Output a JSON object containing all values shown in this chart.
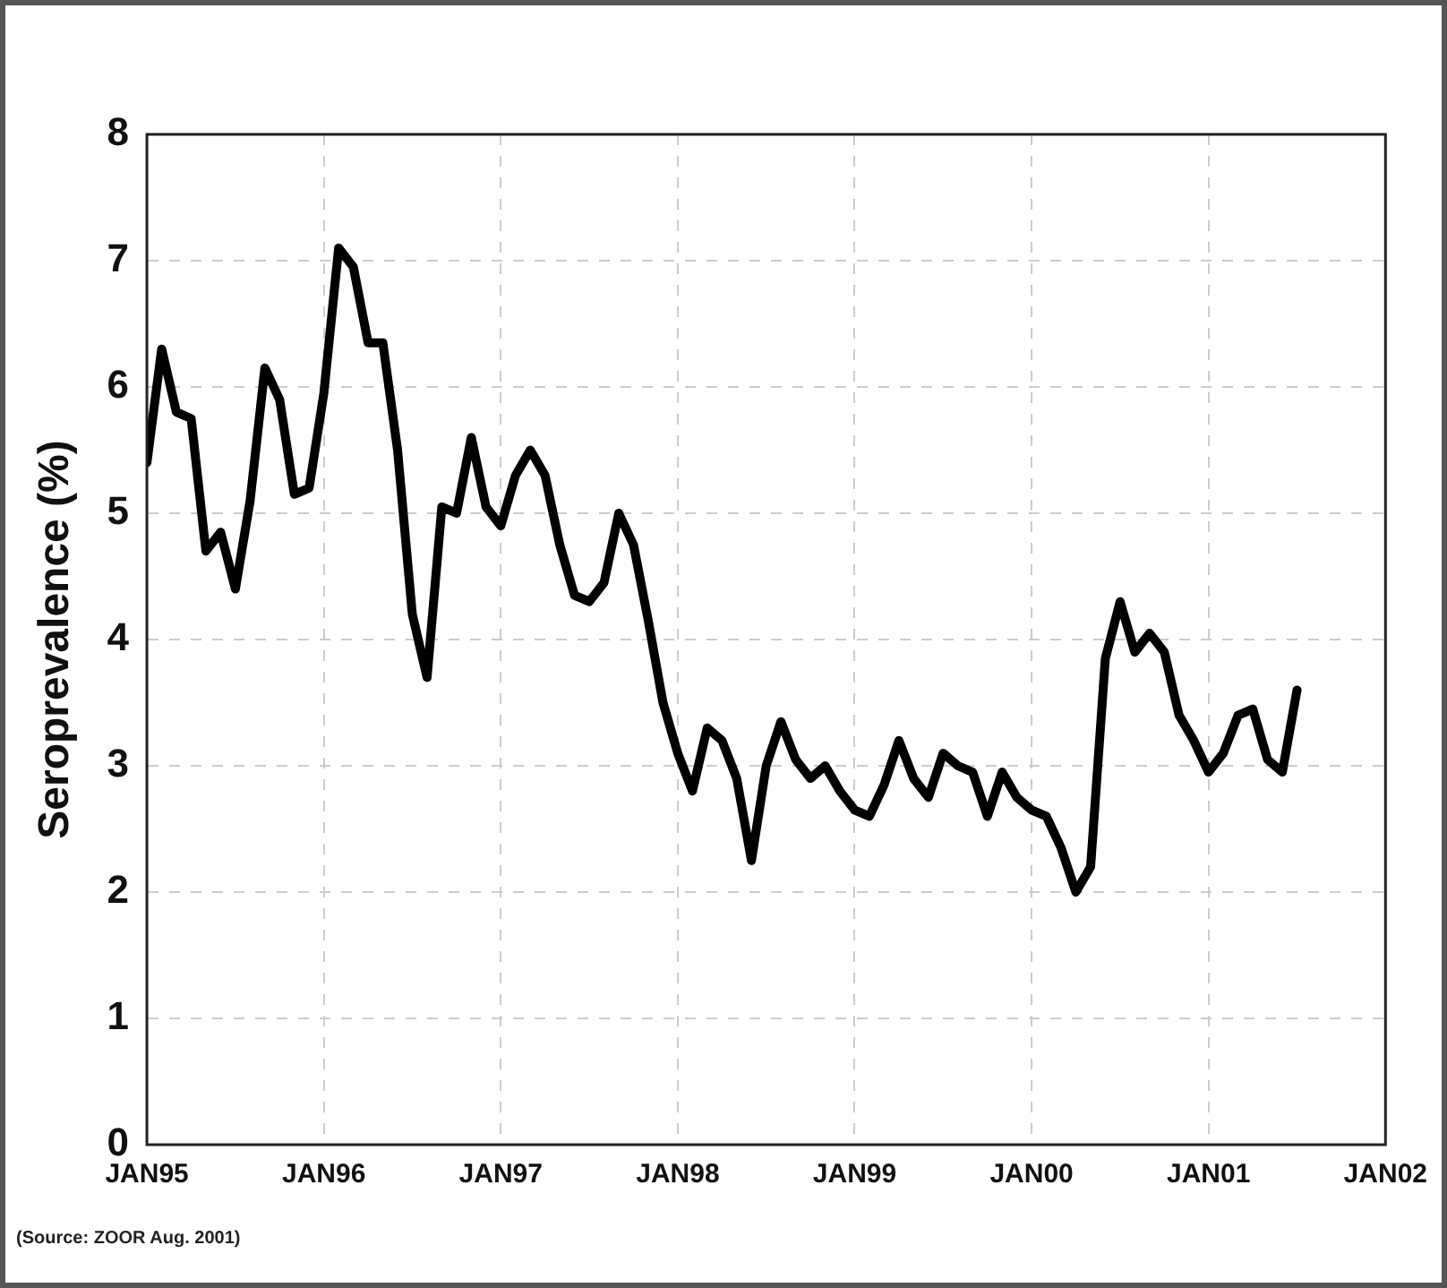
{
  "chart_data": {
    "type": "line",
    "ylabel": "Seroprevalence (%)",
    "x": [
      "1995-01",
      "1995-02",
      "1995-03",
      "1995-04",
      "1995-05",
      "1995-06",
      "1995-07",
      "1995-08",
      "1995-09",
      "1995-10",
      "1995-11",
      "1995-12",
      "1996-01",
      "1996-02",
      "1996-03",
      "1996-04",
      "1996-05",
      "1996-06",
      "1996-07",
      "1996-08",
      "1996-09",
      "1996-10",
      "1996-11",
      "1996-12",
      "1997-01",
      "1997-02",
      "1997-03",
      "1997-04",
      "1997-05",
      "1997-06",
      "1997-07",
      "1997-08",
      "1997-09",
      "1997-10",
      "1997-11",
      "1997-12",
      "1998-01",
      "1998-02",
      "1998-03",
      "1998-04",
      "1998-05",
      "1998-06",
      "1998-07",
      "1998-08",
      "1998-09",
      "1998-10",
      "1998-11",
      "1998-12",
      "1999-01",
      "1999-02",
      "1999-03",
      "1999-04",
      "1999-05",
      "1999-06",
      "1999-07",
      "1999-08",
      "1999-09",
      "1999-10",
      "1999-11",
      "1999-12",
      "2000-01",
      "2000-02",
      "2000-03",
      "2000-04",
      "2000-05",
      "2000-06",
      "2000-07",
      "2000-08",
      "2000-09",
      "2000-10",
      "2000-11",
      "2000-12",
      "2001-01",
      "2001-02",
      "2001-03",
      "2001-04",
      "2001-05",
      "2001-06",
      "2001-07"
    ],
    "series": [
      {
        "color": "#000000",
        "values": [
          5.4,
          6.3,
          5.8,
          5.75,
          4.7,
          4.85,
          4.4,
          5.1,
          6.15,
          5.9,
          5.15,
          5.2,
          5.95,
          7.1,
          6.95,
          6.35,
          6.35,
          5.5,
          4.2,
          3.7,
          5.05,
          5.0,
          5.6,
          5.05,
          4.9,
          5.3,
          5.5,
          5.3,
          4.75,
          4.35,
          4.3,
          4.45,
          5.0,
          4.75,
          4.15,
          3.5,
          3.1,
          2.8,
          3.3,
          3.2,
          2.9,
          2.25,
          3.0,
          3.35,
          3.05,
          2.9,
          3.0,
          2.8,
          2.65,
          2.6,
          2.85,
          3.2,
          2.9,
          2.75,
          3.1,
          3.0,
          2.95,
          2.6,
          2.95,
          2.75,
          2.65,
          2.6,
          2.35,
          2.0,
          2.2,
          3.85,
          4.3,
          3.9,
          4.05,
          3.9,
          3.4,
          3.2,
          2.95,
          3.1,
          3.4,
          3.45,
          3.05,
          2.95,
          3.6
        ]
      }
    ],
    "xlim": [
      "1995-01",
      "2002-01"
    ],
    "xticks": [
      {
        "value": "1995-01",
        "label": "JAN95"
      },
      {
        "value": "1996-01",
        "label": "JAN96"
      },
      {
        "value": "1997-01",
        "label": "JAN97"
      },
      {
        "value": "1998-01",
        "label": "JAN98"
      },
      {
        "value": "1999-01",
        "label": "JAN99"
      },
      {
        "value": "2000-01",
        "label": "JAN00"
      },
      {
        "value": "2001-01",
        "label": "JAN01"
      },
      {
        "value": "2002-01",
        "label": "JAN02"
      }
    ],
    "ylim": [
      0,
      8
    ],
    "yticks": [
      0,
      1,
      2,
      3,
      4,
      5,
      6,
      7,
      8
    ],
    "grid": true,
    "legend": false,
    "marker": "none",
    "line_style": "solid",
    "annotations": [
      "(Source: ZOOR Aug. 2001)"
    ]
  }
}
